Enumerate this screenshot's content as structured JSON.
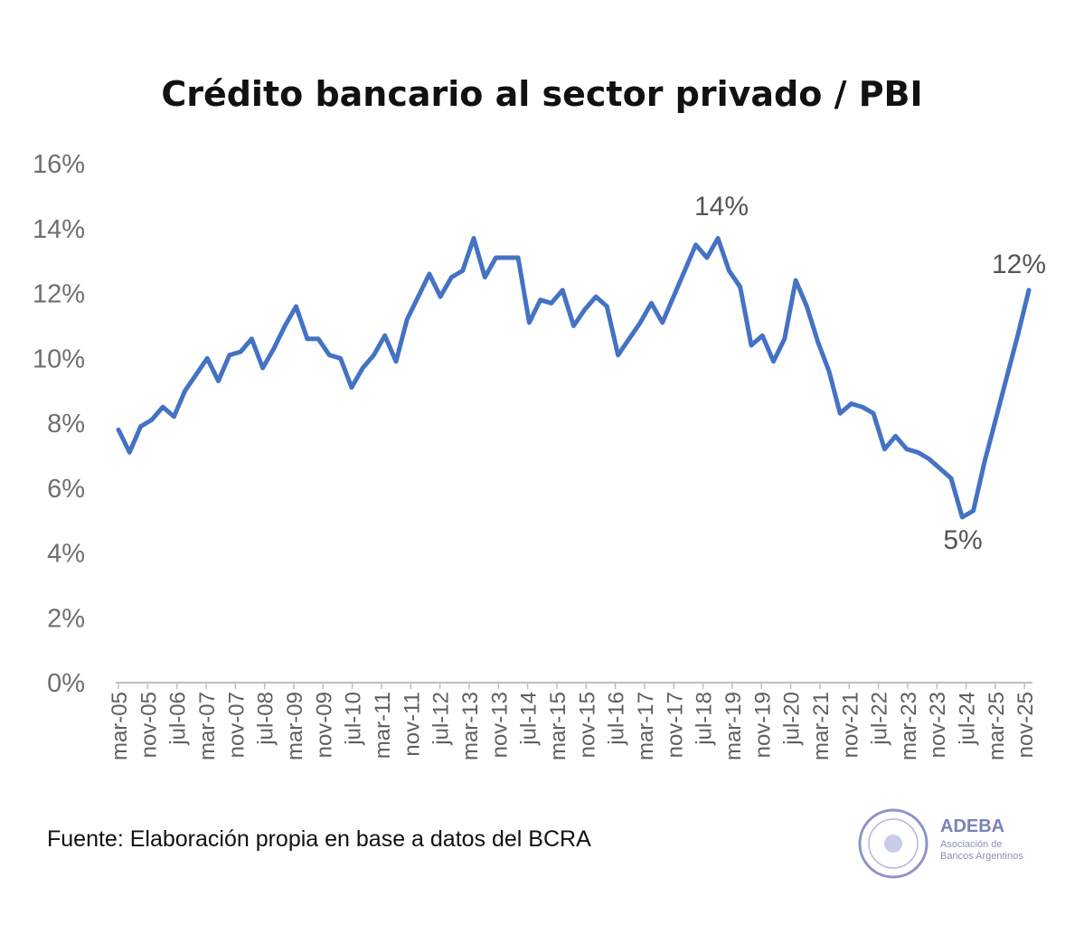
{
  "title": "Crédito bancario al sector privado / PBI",
  "source_note": "Fuente: Elaboración propia en base a datos del BCRA",
  "logo": {
    "name": "ADEBA",
    "subtitle_line1": "Asociación de",
    "subtitle_line2": "Bancos Argentinos"
  },
  "colors": {
    "line": "#4472C4",
    "axis": "#BFBFBF",
    "text": "#595959"
  },
  "chart_data": {
    "type": "line",
    "title": "Crédito bancario al sector privado / PBI",
    "xlabel": "",
    "ylabel": "",
    "ylim": [
      0,
      16
    ],
    "yticks": [
      "0%",
      "2%",
      "4%",
      "6%",
      "8%",
      "10%",
      "12%",
      "14%",
      "16%"
    ],
    "grid": false,
    "legend": "none",
    "x_tick_labels": [
      "mar-05",
      "nov-05",
      "jul-06",
      "mar-07",
      "nov-07",
      "jul-08",
      "mar-09",
      "nov-09",
      "jul-10",
      "mar-11",
      "nov-11",
      "jul-12",
      "mar-13",
      "nov-13",
      "jul-14",
      "mar-15",
      "nov-15",
      "jul-16",
      "mar-17",
      "nov-17",
      "jul-18",
      "mar-19",
      "nov-19",
      "jul-20",
      "mar-21",
      "nov-21",
      "jul-22",
      "mar-23",
      "nov-23",
      "jul-24",
      "mar-25",
      "nov-25"
    ],
    "series": [
      {
        "values": [
          7.8,
          7.1,
          7.9,
          8.1,
          8.5,
          8.2,
          9.0,
          9.5,
          10.0,
          9.3,
          10.1,
          10.2,
          10.6,
          9.7,
          10.3,
          11.0,
          11.6,
          10.6,
          10.6,
          10.1,
          10.0,
          9.1,
          9.7,
          10.1,
          10.7,
          9.9,
          11.2,
          11.9,
          12.6,
          11.9,
          12.5,
          12.7,
          13.7,
          12.5,
          13.1,
          13.1,
          13.1,
          11.1,
          11.8,
          11.7,
          12.1,
          11.0,
          11.5,
          11.9,
          11.6,
          10.1,
          10.6,
          11.1,
          11.7,
          11.1,
          11.9,
          12.7,
          13.5,
          13.1,
          13.7,
          12.7,
          12.2,
          10.4,
          10.7,
          9.9,
          10.6,
          12.4,
          11.6,
          10.5,
          9.6,
          8.3,
          8.6,
          8.5,
          8.3,
          7.2,
          7.6,
          7.2,
          7.1,
          6.9,
          6.6,
          6.3,
          5.1,
          5.3,
          6.8,
          8.1,
          9.4,
          10.7,
          12.1
        ]
      }
    ],
    "annotations": [
      {
        "text": "14%",
        "label_of": "peak jul-18"
      },
      {
        "text": "5%",
        "label_of": "minimum"
      },
      {
        "text": "12%",
        "label_of": "last value"
      }
    ]
  }
}
